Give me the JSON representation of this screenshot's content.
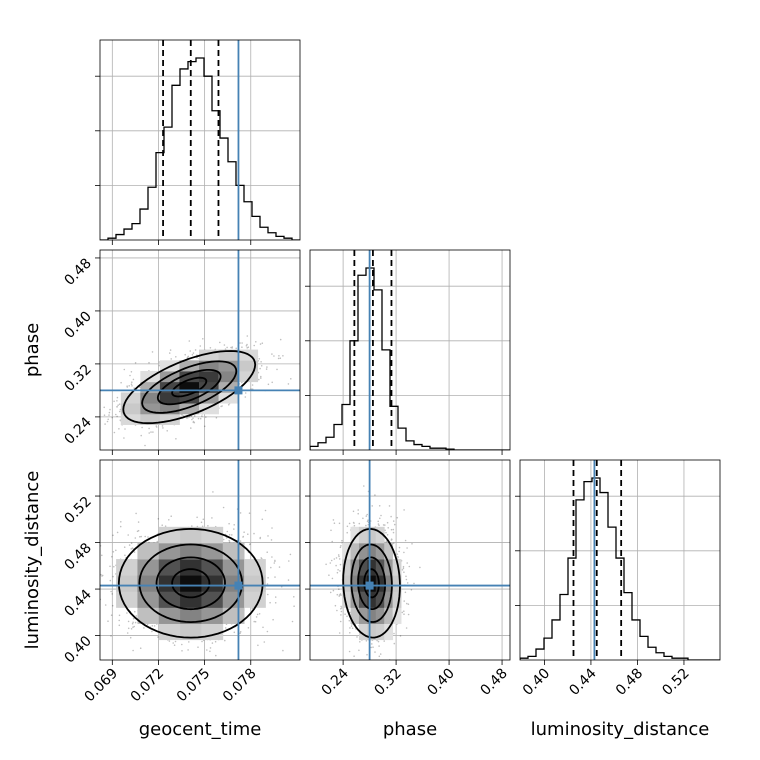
{
  "chart_data": {
    "type": "corner",
    "parameters": [
      "geocent_time",
      "phase",
      "luminosity_distance"
    ],
    "ranges": {
      "geocent_time": [
        0.0682,
        0.0812
      ],
      "phase": [
        0.19,
        0.492
      ],
      "luminosity_distance": [
        0.379,
        0.551
      ]
    },
    "ticks": {
      "geocent_time": [
        "0.069",
        "0.072",
        "0.075",
        "0.078"
      ],
      "phase": [
        "0.24",
        "0.32",
        "0.40",
        "0.48"
      ],
      "luminosity_distance": [
        "0.40",
        "0.44",
        "0.48",
        "0.52"
      ]
    },
    "truths": {
      "geocent_time": 0.0772,
      "phase": 0.28,
      "luminosity_distance": 0.443
    },
    "quantiles": {
      "geocent_time": [
        0.0723,
        0.0741,
        0.0759
      ],
      "phase": [
        0.257,
        0.285,
        0.313
      ],
      "luminosity_distance": [
        0.425,
        0.445,
        0.466
      ]
    },
    "marginals": {
      "geocent_time": {
        "bins": [
          0.0682,
          0.0812
        ],
        "counts": [
          0,
          0.01,
          0.03,
          0.06,
          0.09,
          0.17,
          0.29,
          0.48,
          0.62,
          0.85,
          0.94,
          0.98,
          1.0,
          0.9,
          0.71,
          0.56,
          0.43,
          0.3,
          0.21,
          0.13,
          0.07,
          0.04,
          0.02,
          0.01,
          0
        ]
      },
      "phase": {
        "bins": [
          0.19,
          0.492
        ],
        "counts": [
          0.02,
          0.04,
          0.07,
          0.14,
          0.25,
          0.6,
          0.96,
          1.0,
          0.88,
          0.55,
          0.24,
          0.12,
          0.05,
          0.03,
          0.02,
          0.01,
          0.01,
          0.005,
          0,
          0,
          0,
          0,
          0,
          0,
          0
        ]
      },
      "luminosity_distance": {
        "bins": [
          0.379,
          0.551
        ],
        "counts": [
          0.01,
          0.02,
          0.06,
          0.12,
          0.22,
          0.36,
          0.56,
          0.88,
          0.98,
          1.0,
          0.92,
          0.73,
          0.56,
          0.37,
          0.22,
          0.13,
          0.07,
          0.04,
          0.02,
          0.01,
          0.01,
          0,
          0,
          0,
          0
        ]
      }
    },
    "joint": [
      {
        "x": "geocent_time",
        "y": "phase",
        "mean": [
          0.074,
          0.285
        ],
        "sd": [
          0.0022,
          0.028
        ],
        "rho": 0.62
      },
      {
        "x": "geocent_time",
        "y": "luminosity_distance",
        "mean": [
          0.0741,
          0.445
        ],
        "sd": [
          0.0024,
          0.024
        ],
        "rho": 0.0
      },
      {
        "x": "phase",
        "y": "luminosity_distance",
        "mean": [
          0.283,
          0.445
        ],
        "sd": [
          0.022,
          0.024
        ],
        "rho": -0.05
      }
    ],
    "grid": true,
    "colors": {
      "truth": "#4682b4",
      "line": "#000000"
    }
  }
}
